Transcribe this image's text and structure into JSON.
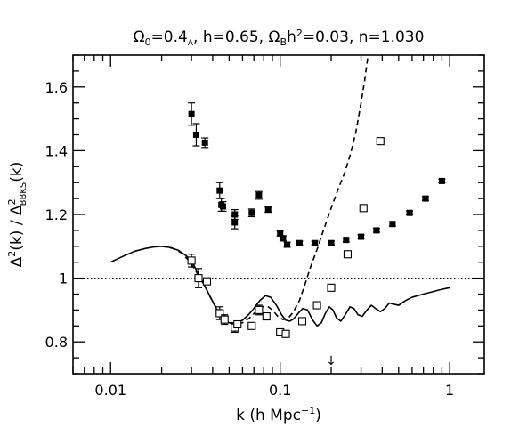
{
  "chart_data": {
    "type": "scatter",
    "title": "Ω₀=0.4_Λ, h=0.65, Ω_Bh²=0.03, n=1.030",
    "title_parts": {
      "p1": "Ω",
      "p1_sub": "0",
      "p2": "=0.4",
      "p2_sub": "Λ",
      "p3": ", h=0.65, ",
      "p4": "Ω",
      "p4_sub": "B",
      "p5": "h",
      "p5_sup": "2",
      "p6": "=0.03, n=1.030"
    },
    "xlabel": "k (h Mpc⁻¹)",
    "xlabel_parts": {
      "main": "k (h Mpc",
      "sup": "−1",
      "end": ")"
    },
    "ylabel": "Δ²(k) / Δ²_BBKS(k)",
    "ylabel_parts": {
      "a": "Δ",
      "a_sup": "2",
      "b": "(k) / Δ",
      "b_sup": "2",
      "b_sub": "BBKS",
      "c": "(k)"
    },
    "x_scale": "log",
    "xlim": [
      0.006,
      1.6
    ],
    "ylim": [
      0.7,
      1.7
    ],
    "x_ticks": [
      {
        "value": 0.01,
        "label": "0.01"
      },
      {
        "value": 0.1,
        "label": "0.1"
      },
      {
        "value": 1,
        "label": "1"
      }
    ],
    "y_ticks": [
      {
        "value": 0.8,
        "label": "0.8"
      },
      {
        "value": 1.0,
        "label": "1"
      },
      {
        "value": 1.2,
        "label": "1.2"
      },
      {
        "value": 1.4,
        "label": "1.4"
      },
      {
        "value": 1.6,
        "label": "1.6"
      }
    ],
    "reference_line": {
      "y": 1.0,
      "style": "dotted"
    },
    "arrow_marker": {
      "x": 0.2,
      "symbol": "↓"
    },
    "grid": false,
    "series": [
      {
        "marker": "filled-square",
        "points": [
          {
            "x": 0.03,
            "y": 1.515,
            "err": 0.035
          },
          {
            "x": 0.032,
            "y": 1.45,
            "err": 0.035
          },
          {
            "x": 0.036,
            "y": 1.425,
            "err": 0.015
          },
          {
            "x": 0.044,
            "y": 1.275,
            "err": 0.025
          },
          {
            "x": 0.045,
            "y": 1.23,
            "err": 0.02
          },
          {
            "x": 0.046,
            "y": 1.225,
            "err": 0.015
          },
          {
            "x": 0.054,
            "y": 1.2,
            "err": 0.015
          },
          {
            "x": 0.054,
            "y": 1.175,
            "err": 0.02
          },
          {
            "x": 0.068,
            "y": 1.205,
            "err": 0.012
          },
          {
            "x": 0.075,
            "y": 1.26,
            "err": 0.012
          },
          {
            "x": 0.085,
            "y": 1.215,
            "err": 0.008
          },
          {
            "x": 0.1,
            "y": 1.14,
            "err": 0.008
          },
          {
            "x": 0.104,
            "y": 1.125,
            "err": 0.008
          },
          {
            "x": 0.11,
            "y": 1.105,
            "err": 0.008
          },
          {
            "x": 0.13,
            "y": 1.11,
            "err": 0.006
          },
          {
            "x": 0.16,
            "y": 1.11,
            "err": 0.006
          },
          {
            "x": 0.2,
            "y": 1.11,
            "err": 0.006
          },
          {
            "x": 0.245,
            "y": 1.12,
            "err": 0.006
          },
          {
            "x": 0.3,
            "y": 1.13,
            "err": 0.006
          },
          {
            "x": 0.37,
            "y": 1.15,
            "err": 0.006
          },
          {
            "x": 0.46,
            "y": 1.17,
            "err": 0.006
          },
          {
            "x": 0.58,
            "y": 1.205,
            "err": 0.006
          },
          {
            "x": 0.72,
            "y": 1.25,
            "err": 0.006
          },
          {
            "x": 0.9,
            "y": 1.305,
            "err": 0.006
          }
        ]
      },
      {
        "marker": "open-square",
        "points": [
          {
            "x": 0.03,
            "y": 1.055,
            "err": 0.02
          },
          {
            "x": 0.033,
            "y": 1.0,
            "err": 0.03
          },
          {
            "x": 0.037,
            "y": 0.99,
            "err": 0.01
          },
          {
            "x": 0.044,
            "y": 0.89,
            "err": 0.02
          },
          {
            "x": 0.047,
            "y": 0.87,
            "err": 0.015
          },
          {
            "x": 0.054,
            "y": 0.845,
            "err": 0.015
          },
          {
            "x": 0.056,
            "y": 0.855,
            "err": 0.01
          },
          {
            "x": 0.068,
            "y": 0.85,
            "err": 0.01
          },
          {
            "x": 0.075,
            "y": 0.9,
            "err": 0.015
          },
          {
            "x": 0.083,
            "y": 0.88,
            "err": 0.01
          },
          {
            "x": 0.1,
            "y": 0.83,
            "err": 0.008
          },
          {
            "x": 0.108,
            "y": 0.825,
            "err": 0.008
          },
          {
            "x": 0.135,
            "y": 0.865,
            "err": 0.006
          },
          {
            "x": 0.165,
            "y": 0.915,
            "err": 0.006
          },
          {
            "x": 0.2,
            "y": 0.97,
            "err": 0.006
          },
          {
            "x": 0.25,
            "y": 1.075,
            "err": 0.006
          },
          {
            "x": 0.31,
            "y": 1.22,
            "err": 0.006
          },
          {
            "x": 0.39,
            "y": 1.43,
            "err": 0.006
          }
        ]
      }
    ],
    "curves": [
      {
        "style": "solid",
        "points": [
          [
            0.01,
            1.05
          ],
          [
            0.012,
            1.07
          ],
          [
            0.014,
            1.085
          ],
          [
            0.016,
            1.093
          ],
          [
            0.018,
            1.098
          ],
          [
            0.02,
            1.1
          ],
          [
            0.022,
            1.097
          ],
          [
            0.025,
            1.088
          ],
          [
            0.028,
            1.07
          ],
          [
            0.031,
            1.04
          ],
          [
            0.034,
            1.0
          ],
          [
            0.038,
            0.95
          ],
          [
            0.042,
            0.905
          ],
          [
            0.046,
            0.875
          ],
          [
            0.05,
            0.86
          ],
          [
            0.055,
            0.858
          ],
          [
            0.06,
            0.868
          ],
          [
            0.065,
            0.885
          ],
          [
            0.07,
            0.905
          ],
          [
            0.076,
            0.93
          ],
          [
            0.082,
            0.945
          ],
          [
            0.088,
            0.94
          ],
          [
            0.095,
            0.915
          ],
          [
            0.102,
            0.885
          ],
          [
            0.108,
            0.868
          ],
          [
            0.114,
            0.865
          ],
          [
            0.12,
            0.872
          ],
          [
            0.128,
            0.89
          ],
          [
            0.136,
            0.905
          ],
          [
            0.145,
            0.9
          ],
          [
            0.155,
            0.87
          ],
          [
            0.165,
            0.85
          ],
          [
            0.175,
            0.86
          ],
          [
            0.185,
            0.89
          ],
          [
            0.195,
            0.91
          ],
          [
            0.205,
            0.9
          ],
          [
            0.215,
            0.875
          ],
          [
            0.228,
            0.865
          ],
          [
            0.242,
            0.885
          ],
          [
            0.258,
            0.91
          ],
          [
            0.272,
            0.905
          ],
          [
            0.288,
            0.885
          ],
          [
            0.305,
            0.88
          ],
          [
            0.325,
            0.9
          ],
          [
            0.345,
            0.915
          ],
          [
            0.365,
            0.905
          ],
          [
            0.39,
            0.895
          ],
          [
            0.415,
            0.905
          ],
          [
            0.44,
            0.922
          ],
          [
            0.47,
            0.918
          ],
          [
            0.5,
            0.915
          ],
          [
            0.55,
            0.93
          ],
          [
            0.6,
            0.94
          ],
          [
            0.7,
            0.95
          ],
          [
            0.8,
            0.958
          ],
          [
            0.9,
            0.965
          ],
          [
            1.0,
            0.97
          ]
        ]
      },
      {
        "style": "dashed",
        "points": [
          [
            0.02,
            1.1
          ],
          [
            0.023,
            1.095
          ],
          [
            0.026,
            1.08
          ],
          [
            0.029,
            1.055
          ],
          [
            0.032,
            1.02
          ],
          [
            0.036,
            0.975
          ],
          [
            0.04,
            0.925
          ],
          [
            0.045,
            0.885
          ],
          [
            0.05,
            0.86
          ],
          [
            0.055,
            0.855
          ],
          [
            0.06,
            0.86
          ],
          [
            0.066,
            0.875
          ],
          [
            0.072,
            0.895
          ],
          [
            0.078,
            0.91
          ],
          [
            0.084,
            0.912
          ],
          [
            0.09,
            0.9
          ],
          [
            0.097,
            0.88
          ],
          [
            0.104,
            0.87
          ],
          [
            0.112,
            0.875
          ],
          [
            0.12,
            0.895
          ],
          [
            0.13,
            0.93
          ],
          [
            0.14,
            0.98
          ],
          [
            0.15,
            1.03
          ],
          [
            0.165,
            1.09
          ],
          [
            0.18,
            1.15
          ],
          [
            0.2,
            1.22
          ],
          [
            0.22,
            1.28
          ],
          [
            0.24,
            1.33
          ],
          [
            0.26,
            1.39
          ],
          [
            0.28,
            1.46
          ],
          [
            0.3,
            1.55
          ],
          [
            0.315,
            1.62
          ],
          [
            0.33,
            1.7
          ]
        ]
      }
    ]
  }
}
